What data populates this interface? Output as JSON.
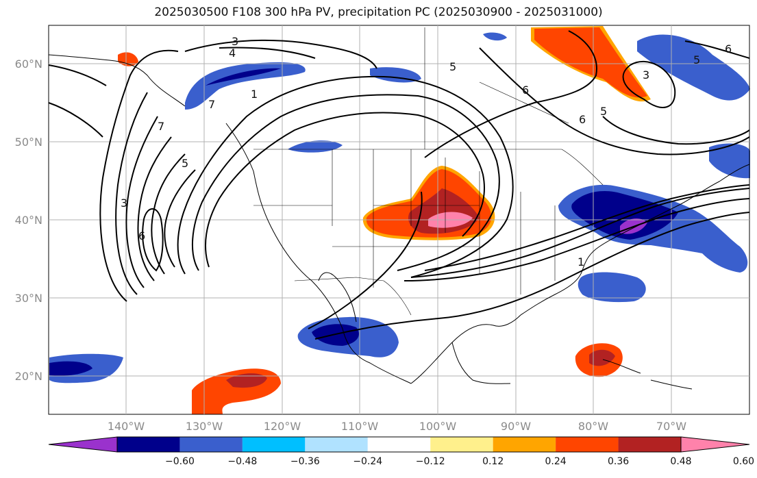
{
  "title": "2025030500 F108 300 hPa PV, precipitation PC (2025030900 - 2025031000)",
  "latitude_labels": [
    "60°N",
    "50°N",
    "40°N",
    "30°N",
    "20°N"
  ],
  "longitude_labels": [
    "140°W",
    "130°W",
    "120°W",
    "110°W",
    "100°W",
    "90°W",
    "80°W",
    "70°W"
  ],
  "colorbar": {
    "tick_labels": [
      "−0.60",
      "−0.48",
      "−0.36",
      "−0.24",
      "−0.12",
      "0.12",
      "0.24",
      "0.36",
      "0.48",
      "0.60"
    ],
    "colors": [
      "#9a32cd",
      "#00008b",
      "#3a5fcd",
      "#00bfff",
      "#b0e2ff",
      "#ffffff",
      "#fff08c",
      "#ffa500",
      "#ff4500",
      "#b22222",
      "#ff82ab"
    ]
  },
  "contour_labels": [
    "3",
    "4",
    "5",
    "6",
    "7",
    "1",
    "3",
    "5",
    "6",
    "7",
    "5",
    "6",
    "3",
    "6",
    "5",
    "1"
  ],
  "map_extent": {
    "lon_min": -150,
    "lon_max": -60,
    "lat_min": 15,
    "lat_max": 65
  }
}
